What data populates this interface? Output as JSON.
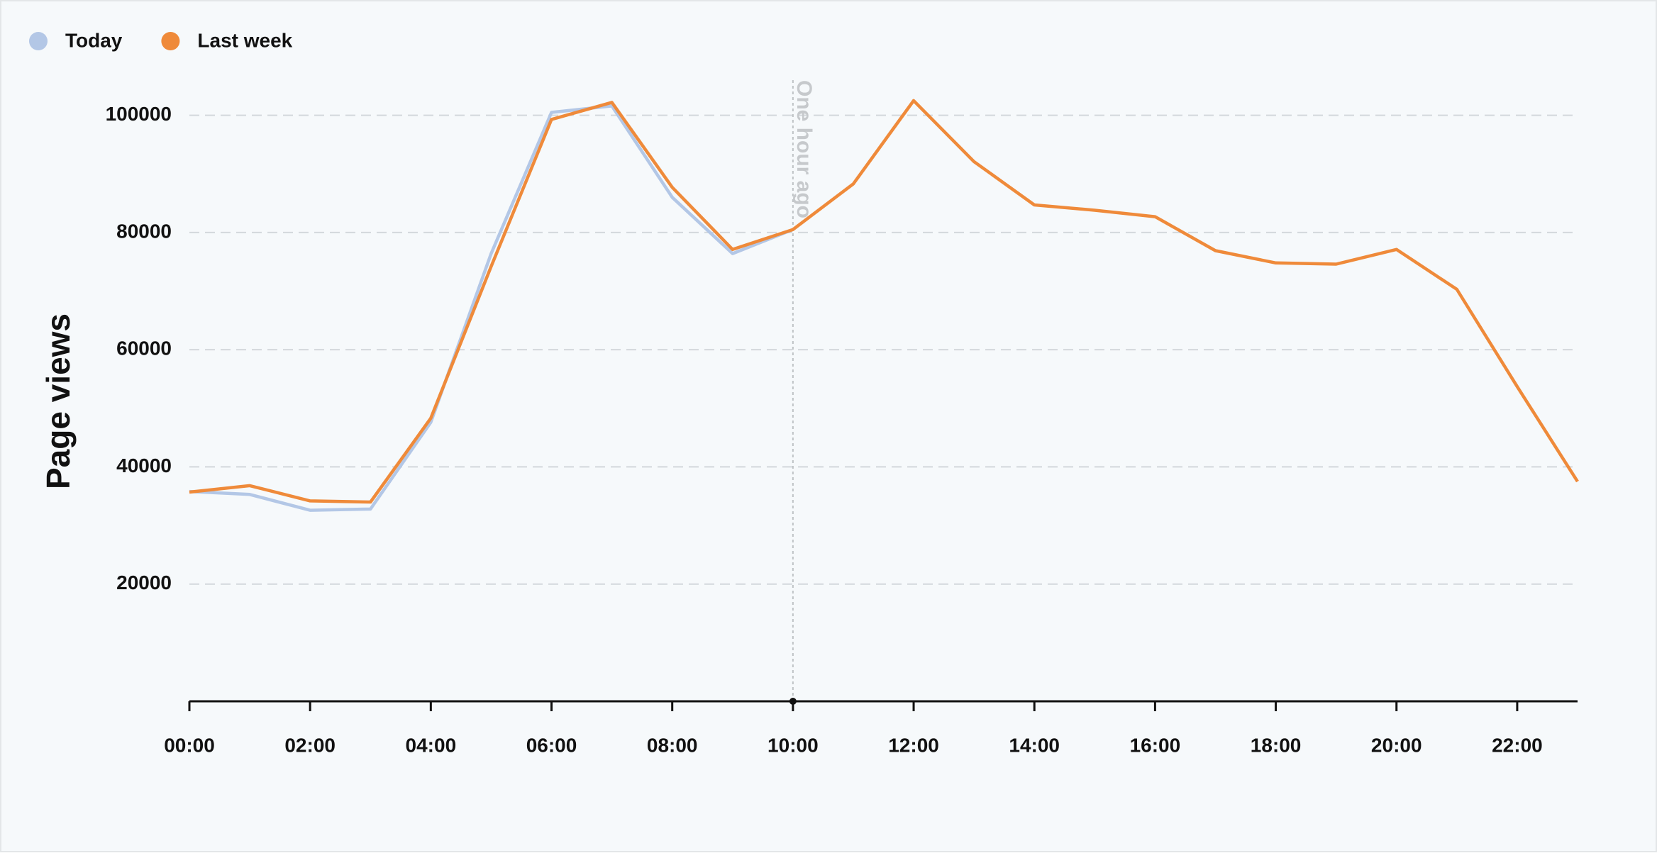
{
  "chart_data": {
    "type": "line",
    "y_label": "Page views",
    "categories": [
      "00:00",
      null,
      "02:00",
      null,
      "04:00",
      null,
      "06:00",
      null,
      "08:00",
      null,
      "10:00",
      null,
      "12:00",
      null,
      "14:00",
      null,
      "16:00",
      null,
      "18:00",
      null,
      "20:00",
      null,
      "22:00",
      null
    ],
    "series": [
      {
        "name": "Today",
        "color": "#b3c7e6",
        "values": [
          35800,
          35300,
          32600,
          32800,
          47600,
          76400,
          100500,
          101600,
          86000,
          76400,
          80500,
          null,
          null,
          null,
          null,
          null,
          null,
          null,
          null,
          null,
          null,
          null,
          null,
          null
        ]
      },
      {
        "name": "Last week",
        "color": "#ef8a3a",
        "values": [
          35700,
          36800,
          34200,
          34000,
          48300,
          74200,
          99300,
          102200,
          87700,
          77100,
          80500,
          88300,
          102500,
          92100,
          84700,
          83800,
          82700,
          76900,
          74800,
          74600,
          77100,
          70300,
          53700,
          37500
        ]
      }
    ],
    "ylim": [
      0,
      106000
    ],
    "yticks": [
      20000,
      40000,
      60000,
      80000,
      100000
    ],
    "grid": true,
    "legend": "top-left",
    "annotation": {
      "text": "One hour ago",
      "at": "10:00"
    }
  }
}
